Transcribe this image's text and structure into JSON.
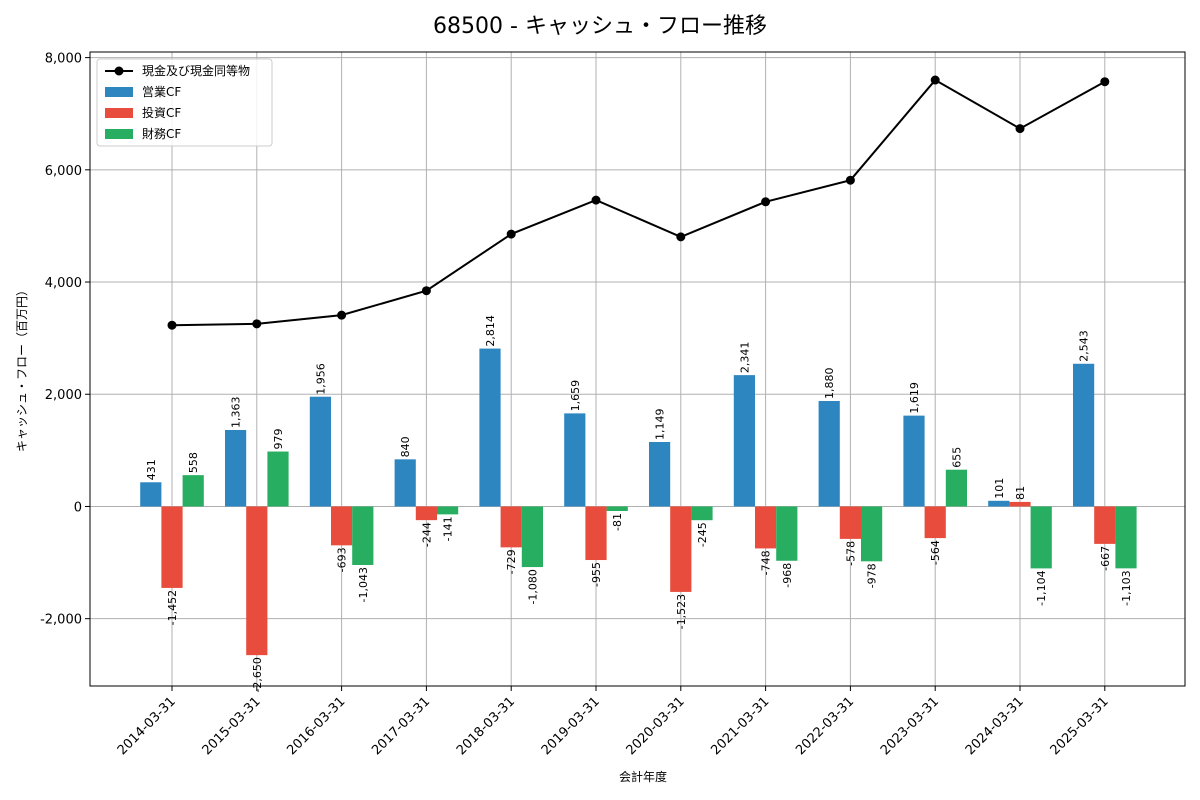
{
  "chart_data": {
    "type": "bar",
    "title": "68500 - キャッシュ・フロー推移",
    "xlabel": "会計年度",
    "ylabel": "キャッシュ・フロー（百万円）",
    "ylim": [
      -3200,
      8100
    ],
    "yticks": [
      -2000,
      0,
      2000,
      4000,
      6000,
      8000
    ],
    "ytick_labels": [
      "-2,000",
      "0",
      "2,000",
      "4,000",
      "6,000",
      "8,000"
    ],
    "grid": true,
    "legend_position": "top-left",
    "categories": [
      "2014-03-31",
      "2015-03-31",
      "2016-03-31",
      "2017-03-31",
      "2018-03-31",
      "2019-03-31",
      "2020-03-31",
      "2021-03-31",
      "2022-03-31",
      "2023-03-31",
      "2024-03-31",
      "2025-03-31"
    ],
    "series": [
      {
        "name": "営業CF",
        "type": "bar",
        "color": "#2e86c1",
        "values": [
          431,
          1363,
          1956,
          840,
          2814,
          1659,
          1149,
          2341,
          1880,
          1619,
          101,
          2543
        ],
        "labels": [
          "431",
          "1,363",
          "1,956",
          "840",
          "2,814",
          "1,659",
          "1,149",
          "2,341",
          "1,880",
          "1,619",
          "101",
          "2,543"
        ]
      },
      {
        "name": "投資CF",
        "type": "bar",
        "color": "#e74c3c",
        "values": [
          -1452,
          -2650,
          -693,
          -244,
          -729,
          -955,
          -1523,
          -748,
          -578,
          -564,
          81,
          -667
        ],
        "labels": [
          "-1,452",
          "-2,650",
          "-693",
          "-244",
          "-729",
          "-955",
          "-1,523",
          "-748",
          "-578",
          "-564",
          "81",
          "-667"
        ]
      },
      {
        "name": "財務CF",
        "type": "bar",
        "color": "#27ae60",
        "values": [
          558,
          979,
          -1043,
          -141,
          -1080,
          -81,
          -245,
          -968,
          -978,
          655,
          -1104,
          -1103
        ],
        "labels": [
          "558",
          "979",
          "-1,043",
          "-141",
          "-1,080",
          "-81",
          "-245",
          "-968",
          "-978",
          "655",
          "-1,104",
          "-1,103"
        ]
      },
      {
        "name": "現金及び現金同等物",
        "type": "line",
        "color": "#000000",
        "values": [
          3230,
          3255,
          3410,
          3845,
          4855,
          5460,
          4805,
          5430,
          5815,
          7600,
          6735,
          7570
        ]
      }
    ]
  }
}
